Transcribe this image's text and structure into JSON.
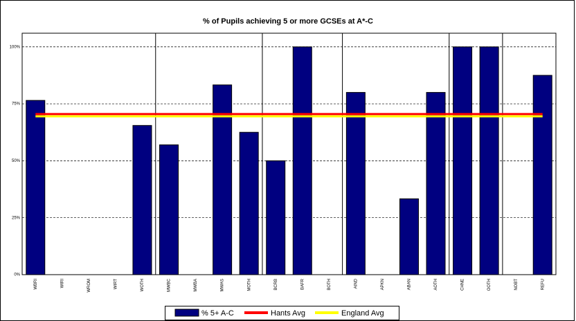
{
  "chart_data": {
    "type": "bar",
    "title": "% of Pupils achieving 5 or more GCSEs at A*-C",
    "categories": [
      "WBRI",
      "WIRI",
      "WROM",
      "WIRT",
      "WOTH",
      "MWBC",
      "MWBA",
      "MWAS",
      "MOTH",
      "BCRB",
      "BAFR",
      "BOTH",
      "AIND",
      "APKN",
      "ABAN",
      "AOTH",
      "CHNE",
      "OOTH",
      "NOBT",
      "REFU"
    ],
    "series": [
      {
        "name": "% 5+ A-C",
        "type": "bar",
        "color": "#000080",
        "values": [
          76.5,
          0,
          0,
          0,
          65.5,
          57,
          0,
          83.3,
          62.5,
          50,
          100,
          0,
          80,
          0,
          33.3,
          80,
          100,
          100,
          0,
          87.5
        ]
      },
      {
        "name": "Hants Avg",
        "type": "line",
        "color": "#ff0000",
        "values": [
          70.5,
          70.5,
          70.5,
          70.5,
          70.5,
          70.5,
          70.5,
          70.5,
          70.5,
          70.5,
          70.5,
          70.5,
          70.5,
          70.5,
          70.5,
          70.5,
          70.5,
          70.5,
          70.5,
          70.5
        ]
      },
      {
        "name": "England Avg",
        "type": "line",
        "color": "#ffff00",
        "values": [
          69.5,
          69.5,
          69.5,
          69.5,
          69.5,
          69.5,
          69.5,
          69.5,
          69.5,
          69.5,
          69.5,
          69.5,
          69.5,
          69.5,
          69.5,
          69.5,
          69.5,
          69.5,
          69.5,
          69.5
        ]
      }
    ],
    "ylim": [
      0,
      106
    ],
    "yticks": [
      {
        "value": 0,
        "label": "0%"
      },
      {
        "value": 25,
        "label": "25%"
      },
      {
        "value": 50,
        "label": "50%"
      },
      {
        "value": 75,
        "label": "75%"
      },
      {
        "value": 100,
        "label": "100%"
      }
    ],
    "grid": true
  }
}
